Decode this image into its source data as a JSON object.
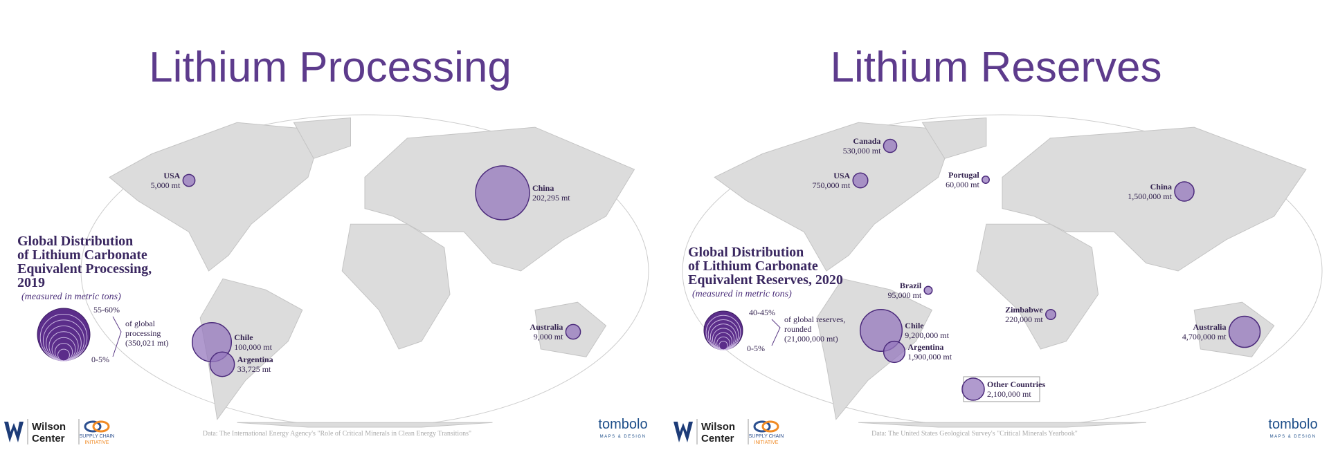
{
  "panels": [
    {
      "title": "Lithium Processing",
      "legend": {
        "title_lines": [
          "Global Distribution",
          "of Lithium Carbonate",
          "Equivalent Processing,",
          "2019"
        ],
        "subtitle": "(measured in metric tons)",
        "scale_max": "55-60%",
        "scale_min": "0-5%",
        "note_lines": [
          "of global",
          "processing",
          "(350,021 mt)"
        ]
      },
      "points": [
        {
          "name": "USA",
          "label": "5,000 mt",
          "value": 5000
        },
        {
          "name": "China",
          "label": "202,295 mt",
          "value": 202295
        },
        {
          "name": "Chile",
          "label": "100,000 mt",
          "value": 100000
        },
        {
          "name": "Argentina",
          "label": "33,725 mt",
          "value": 33725
        },
        {
          "name": "Australia",
          "label": "9,000 mt",
          "value": 9000
        }
      ],
      "source": "Data: The International Energy Agency's \"Role of Critical Minerals in Clean Energy Transitions\"",
      "logo_wilson": [
        "Wilson",
        "Center"
      ],
      "logo_sci": [
        "SUPPLY CHAIN",
        "INITIATIVE"
      ],
      "logo_tombolo": "tombolo",
      "logo_tombolo_sub": "MAPS & DESIGN"
    },
    {
      "title": "Lithium Reserves",
      "legend": {
        "title_lines": [
          "Global Distribution",
          "of Lithium Carbonate",
          "Equivalent Reserves, 2020"
        ],
        "subtitle": "(measured in metric tons)",
        "scale_max": "40-45%",
        "scale_min": "0-5%",
        "note_lines": [
          "of global reserves,",
          "rounded",
          "(21,000,000 mt)"
        ]
      },
      "points": [
        {
          "name": "Canada",
          "label": "530,000 mt",
          "value": 530000
        },
        {
          "name": "USA",
          "label": "750,000 mt",
          "value": 750000
        },
        {
          "name": "Portugal",
          "label": "60,000 mt",
          "value": 60000
        },
        {
          "name": "China",
          "label": "1,500,000 mt",
          "value": 1500000
        },
        {
          "name": "Brazil",
          "label": "95,000 mt",
          "value": 95000
        },
        {
          "name": "Zimbabwe",
          "label": "220,000 mt",
          "value": 220000
        },
        {
          "name": "Chile",
          "label": "9,200,000 mt",
          "value": 9200000
        },
        {
          "name": "Argentina",
          "label": "1,900,000 mt",
          "value": 1900000
        },
        {
          "name": "Australia",
          "label": "4,700,000 mt",
          "value": 4700000
        },
        {
          "name": "Other Countries",
          "label": "2,100,000 mt",
          "value": 2100000
        }
      ],
      "source": "Data: The United States Geological Survey's \"Critical Minerals Yearbook\"",
      "logo_wilson": [
        "Wilson",
        "Center"
      ],
      "logo_sci": [
        "SUPPLY CHAIN",
        "INITIATIVE"
      ],
      "logo_tombolo": "tombolo",
      "logo_tombolo_sub": "MAPS & DESIGN"
    }
  ]
}
